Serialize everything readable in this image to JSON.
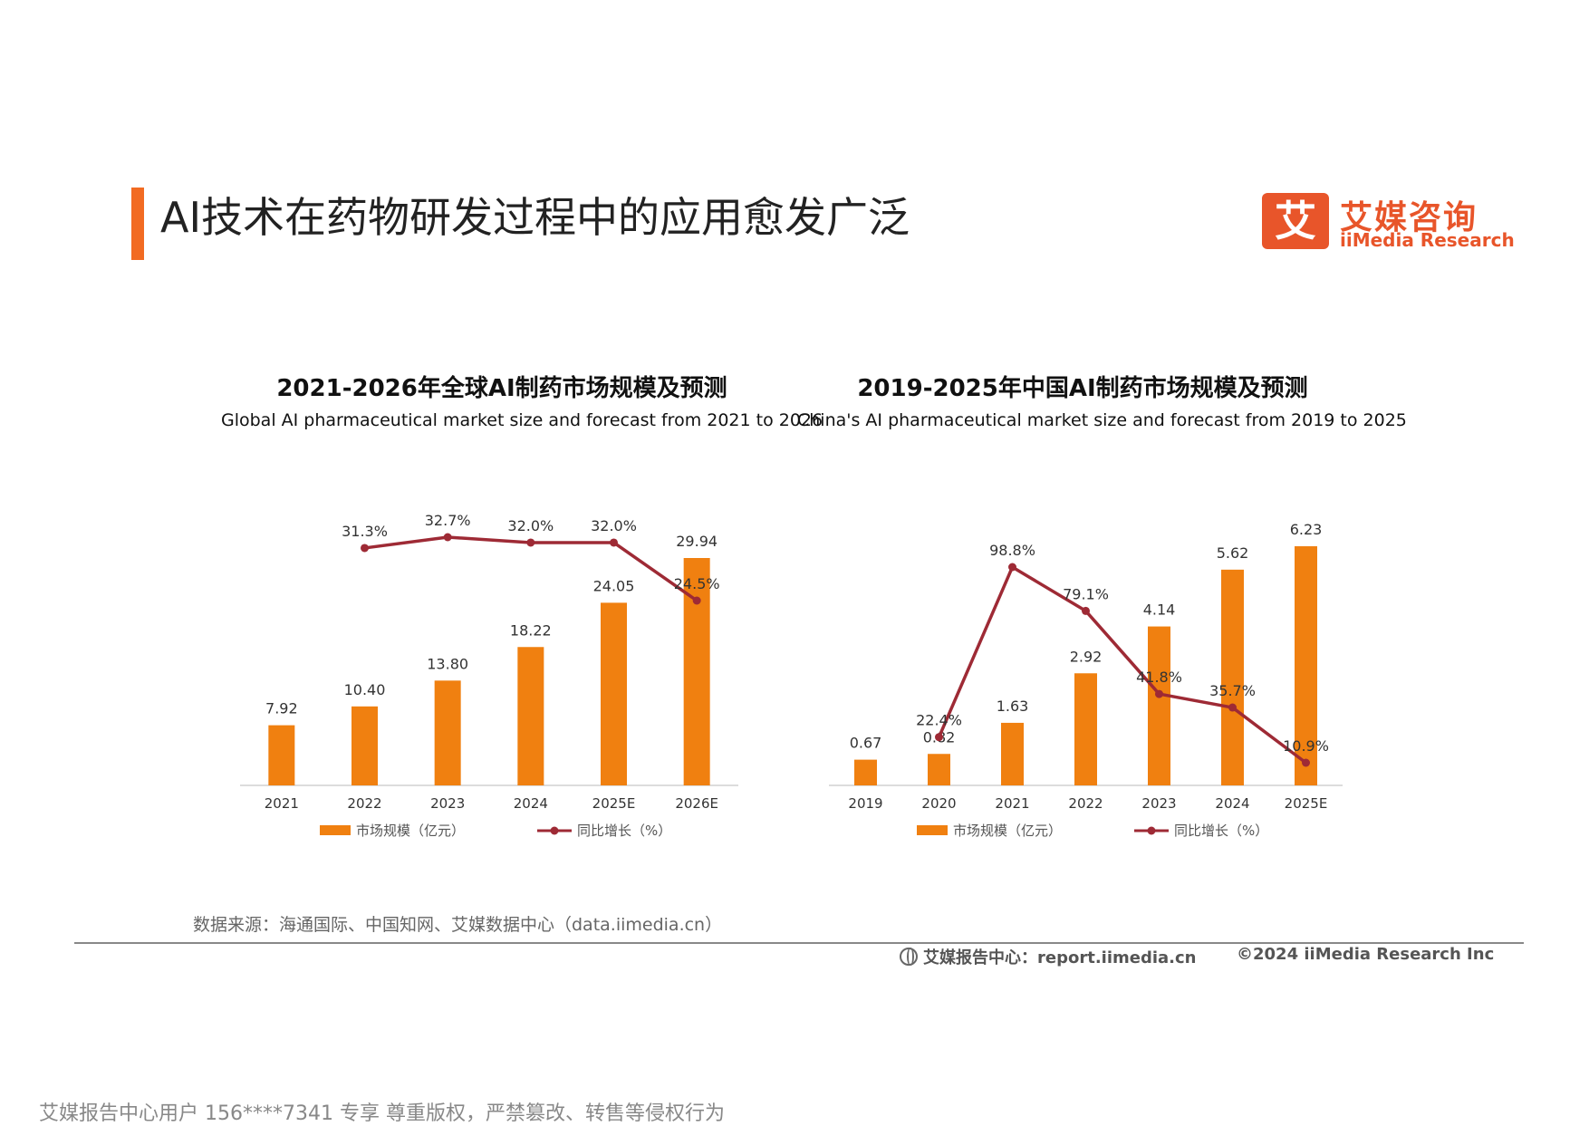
{
  "page": {
    "title": "AI技术在药物研发过程中的应用愈发广泛"
  },
  "logo": {
    "mark": "艾",
    "name_cn": "艾媒咨询",
    "name_en": "iiMedia Research"
  },
  "source": "数据来源：海通国际、中国知网、艾媒数据中心（data.iimedia.cn）",
  "footer": {
    "report": "艾媒报告中心：report.iimedia.cn",
    "copyright": "©2024  iiMedia Research  Inc"
  },
  "watermark": "艾媒报告中心用户 156****7341 专享 尊重版权，严禁篡改、转售等侵权行为",
  "colors": {
    "accent": "#f26b22",
    "bar": "#f08010",
    "line": "#9e2a35",
    "logo": "#e8552a"
  },
  "chart_data": [
    {
      "type": "bar",
      "title": "2021-2026年全球AI制药市场规模及预测",
      "subtitle": "Global AI pharmaceutical market size and forecast from 2021 to 2026",
      "categories": [
        "2021",
        "2022",
        "2023",
        "2024",
        "2025E",
        "2026E"
      ],
      "series": [
        {
          "name": "市场规模（亿元）",
          "type": "bar",
          "values": [
            7.92,
            10.4,
            13.8,
            18.22,
            24.05,
            29.94
          ],
          "labels": [
            "7.92",
            "10.40",
            "13.80",
            "18.22",
            "24.05",
            "29.94"
          ]
        },
        {
          "name": "同比增长（%）",
          "type": "line",
          "values": [
            null,
            31.3,
            32.7,
            32.0,
            32.0,
            24.5
          ],
          "labels": [
            "",
            "31.3%",
            "32.7%",
            "32.0%",
            "32.0%",
            "24.5%"
          ]
        }
      ],
      "legend": "bottom",
      "grid": false
    },
    {
      "type": "bar",
      "title": "2019-2025年中国AI制药市场规模及预测",
      "subtitle": "China's AI pharmaceutical market size and forecast from 2019 to 2025",
      "categories": [
        "2019",
        "2020",
        "2021",
        "2022",
        "2023",
        "2024",
        "2025E"
      ],
      "series": [
        {
          "name": "市场规模（亿元）",
          "type": "bar",
          "values": [
            0.67,
            0.82,
            1.63,
            2.92,
            4.14,
            5.62,
            6.23
          ],
          "labels": [
            "0.67",
            "0.82",
            "1.63",
            "2.92",
            "4.14",
            "5.62",
            "6.23"
          ]
        },
        {
          "name": "同比增长（%）",
          "type": "line",
          "values": [
            null,
            22.4,
            98.8,
            79.1,
            41.8,
            35.7,
            10.9
          ],
          "labels": [
            "",
            "22.4%",
            "98.8%",
            "79.1%",
            "41.8%",
            "35.7%",
            "10.9%"
          ]
        }
      ],
      "legend": "bottom",
      "grid": false
    }
  ]
}
